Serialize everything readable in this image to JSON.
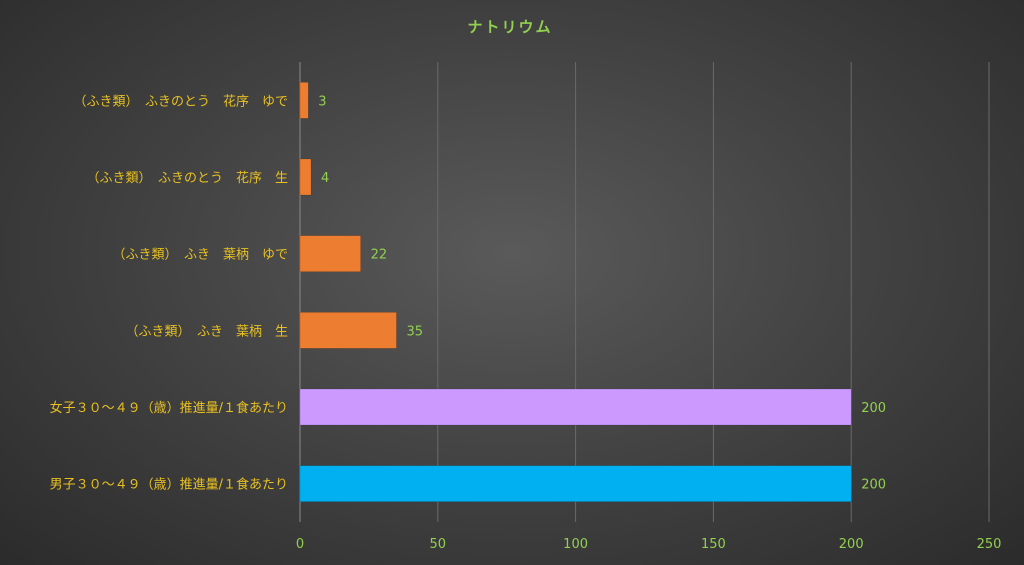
{
  "chart_data": {
    "type": "bar",
    "orientation": "horizontal",
    "title": "ナトリウム",
    "categories": [
      "（ふき類）　ふきのとう　花序　ゆで",
      "（ふき類）　ふきのとう　花序　生",
      "（ふき類）　ふき　葉柄　ゆで",
      "（ふき類）　ふき　葉柄　生",
      "女子３０～４９（歳）推進量/１食あたり",
      "男子３０～４９（歳）推進量/１食あたり"
    ],
    "values": [
      3,
      4,
      22,
      35,
      200,
      200
    ],
    "bar_colors": [
      "#ed7d31",
      "#ed7d31",
      "#ed7d31",
      "#ed7d31",
      "#cc99ff",
      "#00b0f0"
    ],
    "xlim": [
      0,
      250
    ],
    "xticks": [
      0,
      50,
      100,
      150,
      200,
      250
    ],
    "grid": true,
    "legend": "none"
  }
}
